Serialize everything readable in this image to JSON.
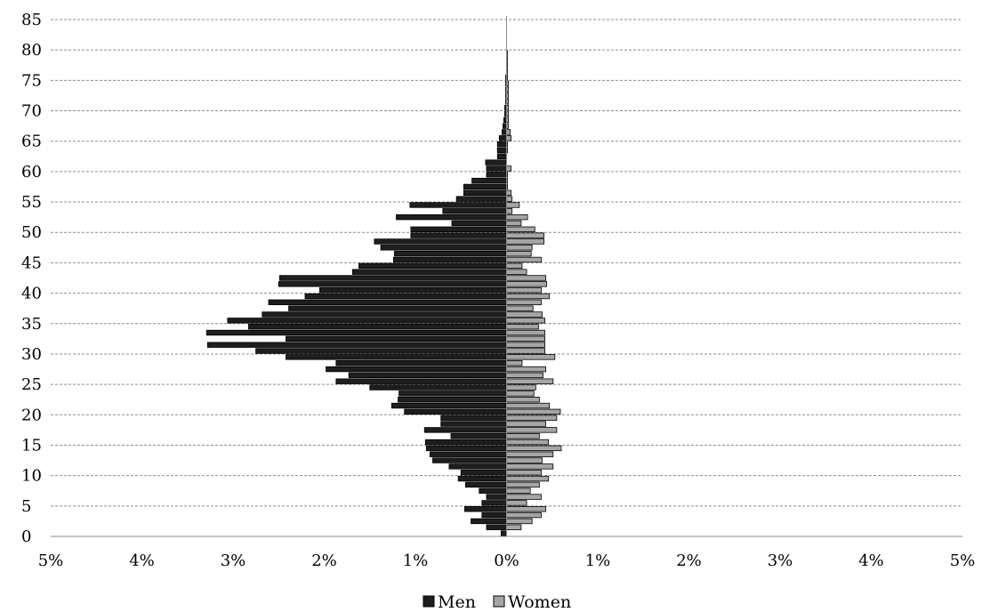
{
  "chart_data": {
    "type": "bar",
    "orientation": "horizontal",
    "layout": "population-pyramid",
    "xlabel": "",
    "ylabel": "",
    "x_ticks": [
      "5%",
      "4%",
      "3%",
      "2%",
      "1%",
      "0%",
      "1%",
      "2%",
      "3%",
      "4%",
      "5%"
    ],
    "y_ticks": [
      "0",
      "5",
      "10",
      "15",
      "20",
      "25",
      "30",
      "35",
      "40",
      "45",
      "50",
      "55",
      "60",
      "65",
      "70",
      "75",
      "80",
      "85"
    ],
    "xlim": [
      -5,
      5
    ],
    "ylim": [
      0,
      85
    ],
    "grid": "horizontal dashed",
    "legend_position": "bottom",
    "ages": [
      0,
      1,
      2,
      3,
      4,
      5,
      6,
      7,
      8,
      9,
      10,
      11,
      12,
      13,
      14,
      15,
      16,
      17,
      18,
      19,
      20,
      21,
      22,
      23,
      24,
      25,
      26,
      27,
      28,
      29,
      30,
      31,
      32,
      33,
      34,
      35,
      36,
      37,
      38,
      39,
      40,
      41,
      42,
      43,
      44,
      45,
      46,
      47,
      48,
      49,
      50,
      51,
      52,
      53,
      54,
      55,
      56,
      57,
      58,
      59,
      60,
      61,
      62,
      63,
      64,
      65,
      66,
      67,
      68,
      69,
      70,
      71,
      72,
      73,
      74,
      75,
      76,
      77,
      78,
      79,
      80,
      81,
      82,
      83,
      84
    ],
    "series": [
      {
        "name": "Men",
        "color": "#1e1e1e",
        "values": [
          0.06,
          0.22,
          0.39,
          0.27,
          0.46,
          0.27,
          0.22,
          0.3,
          0.45,
          0.53,
          0.5,
          0.63,
          0.81,
          0.84,
          0.88,
          0.89,
          0.61,
          0.9,
          0.72,
          0.72,
          1.12,
          1.26,
          1.19,
          1.18,
          1.5,
          1.87,
          1.73,
          1.98,
          1.87,
          2.42,
          2.75,
          3.28,
          2.42,
          3.29,
          2.83,
          3.06,
          2.68,
          2.39,
          2.61,
          2.21,
          2.05,
          2.5,
          2.49,
          1.69,
          1.62,
          1.24,
          1.23,
          1.38,
          1.45,
          1.05,
          1.05,
          0.6,
          1.21,
          0.7,
          1.06,
          0.55,
          0.47,
          0.47,
          0.38,
          0.22,
          0.22,
          0.23,
          0.1,
          0.1,
          0.1,
          0.08,
          0.05,
          0.04,
          0.03,
          0.02,
          0.02,
          0.01,
          0.01,
          0.01,
          0.01,
          0.01,
          0,
          0,
          0,
          0,
          0,
          0,
          0,
          0,
          0
        ]
      },
      {
        "name": "Women",
        "color": "#a6a6a6",
        "values": [
          0,
          0.16,
          0.28,
          0.38,
          0.43,
          0.22,
          0.38,
          0.26,
          0.36,
          0.46,
          0.38,
          0.51,
          0.39,
          0.51,
          0.6,
          0.46,
          0.36,
          0.55,
          0.43,
          0.55,
          0.59,
          0.47,
          0.36,
          0.3,
          0.32,
          0.51,
          0.4,
          0.43,
          0.17,
          0.53,
          0.42,
          0.42,
          0.42,
          0.42,
          0.35,
          0.42,
          0.39,
          0.29,
          0.38,
          0.47,
          0.38,
          0.44,
          0.43,
          0.22,
          0.17,
          0.38,
          0.27,
          0.28,
          0.41,
          0.41,
          0.31,
          0.16,
          0.23,
          0.06,
          0.14,
          0.06,
          0.05,
          0.01,
          0.01,
          0.01,
          0.05,
          0,
          0,
          0.01,
          0.01,
          0.05,
          0.04,
          0.02,
          0.02,
          0.02,
          0.02,
          0.02,
          0.02,
          0.02,
          0.02,
          0.01,
          0.01,
          0.01,
          0.01,
          0.01,
          0,
          0,
          0,
          0,
          0
        ]
      }
    ]
  }
}
